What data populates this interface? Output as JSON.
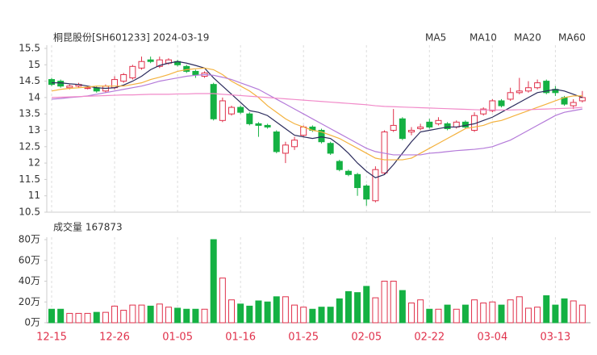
{
  "chart_data": [
    {
      "type": "candlestick",
      "title": "桐昆股份[SH601233] 2024-03-19",
      "up_color": "#e0314b",
      "down_color": "#14b143",
      "ylim": [
        10.5,
        15.5
      ],
      "yticks": [
        15.5,
        15,
        14.5,
        14,
        13.5,
        13,
        12.5,
        12,
        11.5,
        11,
        10.5
      ],
      "open": [
        14.55,
        14.5,
        14.3,
        14.35,
        14.3,
        14.3,
        14.2,
        14.3,
        14.5,
        14.6,
        14.9,
        15.15,
        14.95,
        15.05,
        15.1,
        14.95,
        14.8,
        14.65,
        14.4,
        13.3,
        13.5,
        13.7,
        13.5,
        13.2,
        13.15,
        12.95,
        12.3,
        12.5,
        12.85,
        13.1,
        13.0,
        12.6,
        12.05,
        11.75,
        11.65,
        11.3,
        10.85,
        11.7,
        13.0,
        13.35,
        12.95,
        13.05,
        13.25,
        13.2,
        13.2,
        13.1,
        13.25,
        13.0,
        13.5,
        13.6,
        13.9,
        13.95,
        14.15,
        14.2,
        14.3,
        14.5,
        14.25,
        14.0,
        13.75,
        13.9
      ],
      "high": [
        14.6,
        14.55,
        14.4,
        14.45,
        14.35,
        14.35,
        14.4,
        14.65,
        14.75,
        15.0,
        15.25,
        15.25,
        15.25,
        15.2,
        15.15,
        15.0,
        14.85,
        14.8,
        14.45,
        14.0,
        13.75,
        13.75,
        13.55,
        13.25,
        13.2,
        13.0,
        12.65,
        12.8,
        13.15,
        13.15,
        13.05,
        12.65,
        12.1,
        11.8,
        11.7,
        11.35,
        11.9,
        13.0,
        13.65,
        13.4,
        13.1,
        13.2,
        13.35,
        13.4,
        13.25,
        13.3,
        13.3,
        13.55,
        13.7,
        13.95,
        13.95,
        14.3,
        14.6,
        14.5,
        14.55,
        14.55,
        14.35,
        14.05,
        13.95,
        14.2
      ],
      "low": [
        14.35,
        14.3,
        14.25,
        14.3,
        14.25,
        14.15,
        14.15,
        14.25,
        14.45,
        14.55,
        14.85,
        15.05,
        14.9,
        15.0,
        14.95,
        14.75,
        14.6,
        14.6,
        13.3,
        13.25,
        13.45,
        13.5,
        13.15,
        12.8,
        13.05,
        12.3,
        12.0,
        12.4,
        12.8,
        12.95,
        12.6,
        12.25,
        11.75,
        11.6,
        11.0,
        10.7,
        10.8,
        11.65,
        12.95,
        12.7,
        12.85,
        13.0,
        13.05,
        13.15,
        13.0,
        13.05,
        13.05,
        12.95,
        13.45,
        13.55,
        13.7,
        13.9,
        14.1,
        14.15,
        14.25,
        14.1,
        14.05,
        13.75,
        13.65,
        13.85
      ],
      "close": [
        14.4,
        14.35,
        14.35,
        14.4,
        14.3,
        14.2,
        14.35,
        14.55,
        14.7,
        14.95,
        15.1,
        15.1,
        15.15,
        15.15,
        15.0,
        14.8,
        14.7,
        14.75,
        13.35,
        13.9,
        13.7,
        13.55,
        13.2,
        13.15,
        13.1,
        12.35,
        12.55,
        12.7,
        13.1,
        13.0,
        12.65,
        12.3,
        11.8,
        11.65,
        11.25,
        10.9,
        11.8,
        12.95,
        13.15,
        12.75,
        13.0,
        13.1,
        13.1,
        13.3,
        13.05,
        13.25,
        13.1,
        13.45,
        13.65,
        13.9,
        13.75,
        14.15,
        14.2,
        14.3,
        14.45,
        14.15,
        14.15,
        13.8,
        13.85,
        14.0
      ],
      "series": [
        {
          "name": "MA5",
          "color": "#2b2b5c",
          "values": [
            14.45,
            14.45,
            14.42,
            14.4,
            14.35,
            14.3,
            14.28,
            14.3,
            14.38,
            14.5,
            14.65,
            14.85,
            14.98,
            15.05,
            15.1,
            15.05,
            14.98,
            14.9,
            14.6,
            14.35,
            14.1,
            13.85,
            13.6,
            13.55,
            13.45,
            13.25,
            13.05,
            12.85,
            12.8,
            12.75,
            12.8,
            12.75,
            12.55,
            12.3,
            12.0,
            11.75,
            11.55,
            11.65,
            11.95,
            12.3,
            12.65,
            12.95,
            13.0,
            13.05,
            13.1,
            13.1,
            13.15,
            13.2,
            13.3,
            13.4,
            13.55,
            13.7,
            13.85,
            14.0,
            14.15,
            14.2,
            14.25,
            14.2,
            14.1,
            14.0
          ]
        },
        {
          "name": "MA10",
          "color": "#f4b23e",
          "values": [
            14.2,
            14.25,
            14.28,
            14.3,
            14.32,
            14.35,
            14.35,
            14.35,
            14.35,
            14.4,
            14.45,
            14.55,
            14.62,
            14.7,
            14.8,
            14.85,
            14.88,
            14.9,
            14.85,
            14.7,
            14.5,
            14.35,
            14.2,
            14.0,
            13.75,
            13.55,
            13.35,
            13.2,
            13.1,
            13.0,
            12.95,
            12.85,
            12.75,
            12.6,
            12.45,
            12.3,
            12.15,
            12.1,
            12.1,
            12.1,
            12.15,
            12.3,
            12.45,
            12.6,
            12.75,
            12.9,
            13.05,
            13.1,
            13.15,
            13.25,
            13.3,
            13.4,
            13.5,
            13.6,
            13.7,
            13.8,
            13.9,
            14.0,
            14.05,
            14.05
          ]
        },
        {
          "name": "MA20",
          "color": "#b47ad9",
          "values": [
            13.95,
            13.97,
            14.0,
            14.02,
            14.05,
            14.1,
            14.15,
            14.2,
            14.25,
            14.3,
            14.35,
            14.42,
            14.5,
            14.55,
            14.6,
            14.65,
            14.68,
            14.7,
            14.68,
            14.62,
            14.55,
            14.45,
            14.35,
            14.25,
            14.1,
            13.95,
            13.8,
            13.65,
            13.5,
            13.35,
            13.2,
            13.05,
            12.9,
            12.75,
            12.6,
            12.45,
            12.35,
            12.3,
            12.25,
            12.25,
            12.25,
            12.25,
            12.3,
            12.32,
            12.35,
            12.38,
            12.4,
            12.42,
            12.45,
            12.5,
            12.6,
            12.7,
            12.85,
            13.0,
            13.15,
            13.3,
            13.45,
            13.55,
            13.6,
            13.65
          ]
        },
        {
          "name": "MA60",
          "color": "#f18ac9",
          "values": [
            14.0,
            14.01,
            14.02,
            14.03,
            14.04,
            14.05,
            14.06,
            14.07,
            14.08,
            14.08,
            14.09,
            14.1,
            14.1,
            14.1,
            14.11,
            14.11,
            14.12,
            14.12,
            14.12,
            14.1,
            14.08,
            14.06,
            14.04,
            14.02,
            14.0,
            13.98,
            13.96,
            13.94,
            13.92,
            13.9,
            13.88,
            13.86,
            13.84,
            13.82,
            13.8,
            13.78,
            13.75,
            13.73,
            13.72,
            13.71,
            13.7,
            13.69,
            13.68,
            13.67,
            13.66,
            13.65,
            13.64,
            13.63,
            13.62,
            13.62,
            13.62,
            13.62,
            13.63,
            13.63,
            13.64,
            13.65,
            13.66,
            13.67,
            13.68,
            13.7
          ]
        }
      ]
    },
    {
      "type": "bar",
      "title": "成交量 167873",
      "categories": [
        "12-15",
        null,
        null,
        null,
        null,
        null,
        null,
        "12-26",
        null,
        null,
        null,
        null,
        null,
        null,
        "01-05",
        null,
        null,
        null,
        null,
        null,
        null,
        "01-16",
        null,
        null,
        null,
        null,
        null,
        null,
        "01-25",
        null,
        null,
        null,
        null,
        null,
        null,
        "02-05",
        null,
        null,
        null,
        null,
        null,
        null,
        "02-22",
        null,
        null,
        null,
        null,
        null,
        null,
        "03-04",
        null,
        null,
        null,
        null,
        null,
        null,
        "03-13",
        null,
        null,
        null
      ],
      "values": [
        13,
        13,
        9,
        9,
        9,
        10,
        10,
        16,
        12,
        17,
        17,
        16,
        18,
        15,
        14,
        13,
        13,
        13,
        80,
        43,
        22,
        18,
        16,
        21,
        20,
        25,
        25,
        17,
        15,
        13,
        15,
        15,
        23,
        30,
        29,
        35,
        24,
        40,
        40,
        31,
        19,
        22,
        13,
        13,
        17,
        13,
        17,
        22,
        19,
        20,
        17,
        22,
        25,
        14,
        15,
        26,
        17,
        23,
        21,
        17
      ],
      "ylim": [
        0,
        80
      ],
      "yticks": [
        {
          "value": 80,
          "label": "80万"
        },
        {
          "value": 60,
          "label": "60万"
        },
        {
          "value": 40,
          "label": "40万"
        },
        {
          "value": 20,
          "label": "20万"
        },
        {
          "value": 0,
          "label": "0万"
        }
      ],
      "grid": true
    }
  ]
}
